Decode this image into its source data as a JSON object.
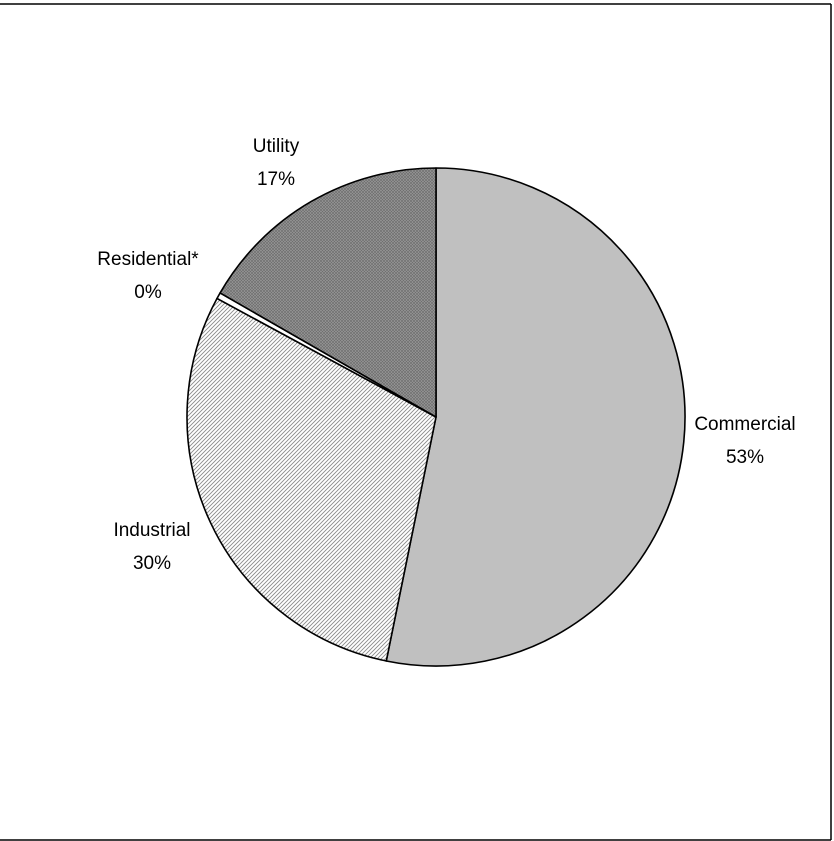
{
  "chart_data": {
    "type": "pie",
    "title": "",
    "slices": [
      {
        "name": "Commercial",
        "pct_label": "53%",
        "value": 53.2,
        "color": "#c0c0c0",
        "pattern": "solid"
      },
      {
        "name": "Industrial",
        "pct_label": "30%",
        "value": 29.7,
        "color": "#ffffff",
        "pattern": "fine-diagonal-hatch"
      },
      {
        "name": "Residential*",
        "pct_label": "0%",
        "value": 0.4,
        "color": "#ffffff",
        "pattern": "solid"
      },
      {
        "name": "Utility",
        "pct_label": "17%",
        "value": 16.7,
        "color": "#a0a0a0",
        "pattern": "dark-crosshatch"
      }
    ],
    "start_angle_deg": 0,
    "direction": "clockwise",
    "legend": "none",
    "labels": "outside"
  }
}
